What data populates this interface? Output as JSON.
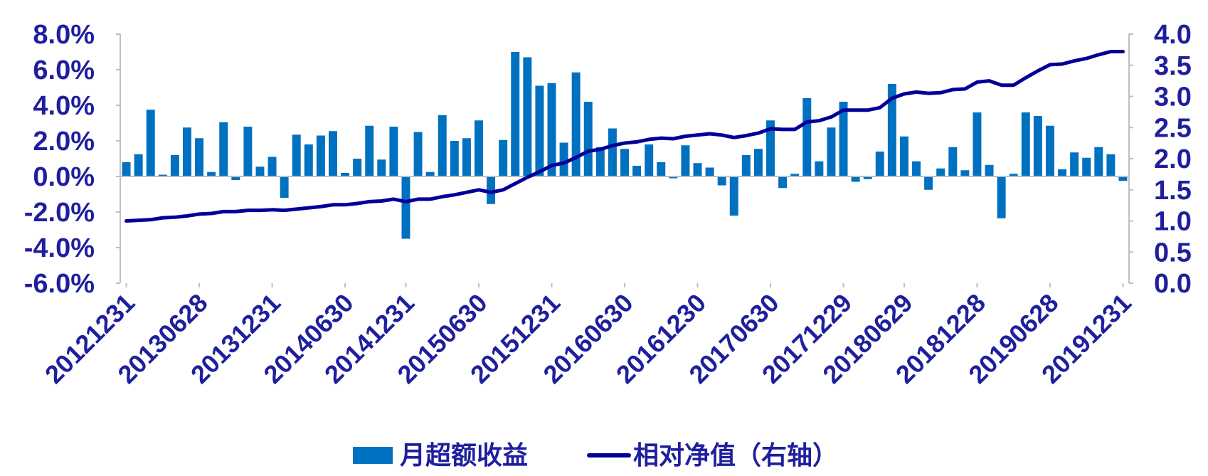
{
  "chart_data": {
    "type": "bar+line",
    "title": "",
    "legend_position": "bottom",
    "grid": false,
    "colors": {
      "bar": "#0070c0",
      "line": "#000099",
      "text": "#1f1f9e",
      "axis": "#bfbfbf"
    },
    "y_left": {
      "label": "",
      "range": [
        -0.06,
        0.08
      ],
      "ticks": [
        "8.0%",
        "6.0%",
        "4.0%",
        "2.0%",
        "0.0%",
        "-2.0%",
        "-4.0%",
        "-6.0%"
      ]
    },
    "y_right": {
      "label": "",
      "range": [
        0.0,
        4.0
      ],
      "ticks": [
        "4.0",
        "3.5",
        "3.0",
        "2.5",
        "2.0",
        "1.5",
        "1.0",
        "0.5",
        "0.0"
      ]
    },
    "x_tick_labels": [
      "20121231",
      "20130628",
      "20131231",
      "20140630",
      "20141231",
      "20150630",
      "20151231",
      "20160630",
      "20161230",
      "20170630",
      "20171229",
      "20180629",
      "20181228",
      "20190628",
      "20191231"
    ],
    "series": [
      {
        "name": "月超额收益",
        "kind": "bar",
        "axis": "left",
        "values": [
          0.008,
          0.0125,
          0.0375,
          0.001,
          0.012,
          0.0275,
          0.0215,
          0.0025,
          0.0305,
          -0.002,
          0.028,
          0.0055,
          0.011,
          -0.012,
          0.0235,
          0.018,
          0.023,
          0.0255,
          0.002,
          0.01,
          0.0285,
          0.0095,
          0.028,
          -0.035,
          0.025,
          0.0025,
          0.0345,
          0.02,
          0.0215,
          0.0315,
          -0.0155,
          0.0205,
          0.07,
          0.067,
          0.051,
          0.0525,
          0.019,
          0.0585,
          0.042,
          0.0165,
          0.027,
          0.0155,
          0.006,
          0.018,
          0.008,
          -0.001,
          0.0175,
          0.0075,
          0.005,
          -0.005,
          -0.022,
          0.012,
          0.0155,
          0.0315,
          -0.0065,
          0.0015,
          0.044,
          0.0085,
          0.0275,
          0.042,
          -0.003,
          -0.0015,
          0.014,
          0.052,
          0.0225,
          0.0085,
          -0.0075,
          0.0045,
          0.0165,
          0.0035,
          0.036,
          0.0065,
          -0.0235,
          0.0015,
          0.036,
          0.034,
          0.0285,
          0.004,
          0.0135,
          0.0105,
          0.0165,
          0.0125,
          -0.0025
        ]
      },
      {
        "name": "相对净值（右轴）",
        "kind": "line",
        "axis": "right",
        "values": [
          1.0,
          1.01,
          1.02,
          1.05,
          1.06,
          1.08,
          1.11,
          1.12,
          1.15,
          1.15,
          1.17,
          1.17,
          1.18,
          1.17,
          1.19,
          1.21,
          1.23,
          1.26,
          1.26,
          1.28,
          1.31,
          1.32,
          1.35,
          1.31,
          1.35,
          1.35,
          1.39,
          1.42,
          1.46,
          1.5,
          1.46,
          1.5,
          1.6,
          1.7,
          1.79,
          1.89,
          1.93,
          2.02,
          2.12,
          2.15,
          2.21,
          2.25,
          2.27,
          2.31,
          2.33,
          2.32,
          2.36,
          2.38,
          2.4,
          2.38,
          2.34,
          2.37,
          2.41,
          2.48,
          2.47,
          2.47,
          2.59,
          2.61,
          2.67,
          2.78,
          2.78,
          2.78,
          2.82,
          2.97,
          3.04,
          3.07,
          3.05,
          3.06,
          3.11,
          3.12,
          3.23,
          3.25,
          3.18,
          3.18,
          3.3,
          3.41,
          3.51,
          3.52,
          3.57,
          3.61,
          3.67,
          3.72,
          3.72
        ]
      }
    ]
  }
}
